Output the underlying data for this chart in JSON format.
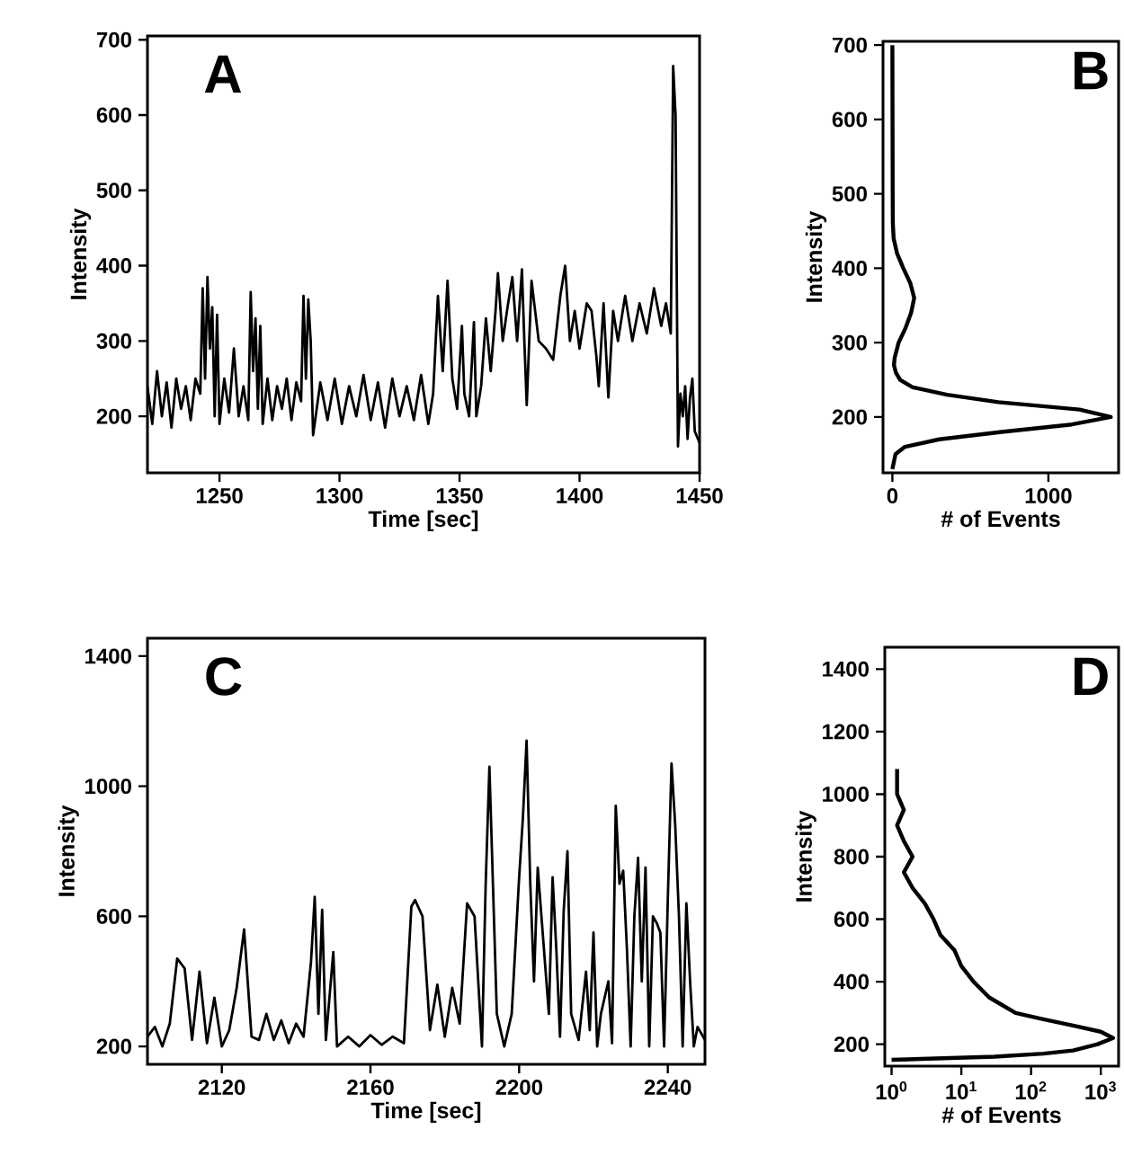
{
  "chart_data": [
    {
      "type": "line",
      "xlabel": "Time [sec]",
      "ylabel": "Intensity",
      "annotations": [
        "A"
      ],
      "xlim": [
        1220,
        1450
      ],
      "ylim": [
        125,
        705
      ],
      "xticks": [
        1250,
        1300,
        1350,
        1400,
        1450
      ],
      "yticks": [
        200,
        300,
        400,
        500,
        600,
        700
      ],
      "series": [
        {
          "color": "#000000",
          "x": [
            1220,
            1222,
            1224,
            1226,
            1228,
            1230,
            1232,
            1234,
            1236,
            1238,
            1240,
            1242,
            1243,
            1244,
            1245,
            1246,
            1247,
            1248,
            1249,
            1250,
            1252,
            1254,
            1256,
            1258,
            1260,
            1262,
            1263,
            1264,
            1265,
            1266,
            1267,
            1268,
            1270,
            1272,
            1274,
            1276,
            1278,
            1280,
            1282,
            1284,
            1285,
            1286,
            1287,
            1288,
            1289,
            1292,
            1295,
            1298,
            1301,
            1304,
            1307,
            1310,
            1313,
            1316,
            1319,
            1322,
            1325,
            1328,
            1331,
            1334,
            1337,
            1339,
            1341,
            1343,
            1345,
            1347,
            1349,
            1351,
            1352,
            1354,
            1356,
            1357,
            1359,
            1361,
            1363,
            1365,
            1366,
            1368,
            1370,
            1372,
            1374,
            1376,
            1377,
            1378,
            1380,
            1383,
            1386,
            1389,
            1392,
            1394,
            1396,
            1398,
            1400,
            1403,
            1405,
            1407,
            1408,
            1410,
            1412,
            1414,
            1416,
            1419,
            1422,
            1425,
            1428,
            1431,
            1434,
            1436,
            1438,
            1439,
            1440,
            1441,
            1442,
            1443,
            1444,
            1445,
            1446,
            1447,
            1448,
            1450
          ],
          "values": [
            240,
            190,
            260,
            200,
            245,
            185,
            250,
            210,
            240,
            195,
            250,
            230,
            370,
            250,
            385,
            290,
            345,
            200,
            335,
            190,
            250,
            205,
            290,
            200,
            240,
            195,
            365,
            260,
            330,
            210,
            320,
            190,
            250,
            195,
            240,
            210,
            250,
            195,
            245,
            220,
            360,
            250,
            355,
            300,
            175,
            245,
            195,
            250,
            190,
            240,
            200,
            255,
            195,
            245,
            185,
            250,
            200,
            240,
            195,
            255,
            190,
            230,
            360,
            260,
            380,
            250,
            210,
            320,
            230,
            200,
            325,
            200,
            240,
            330,
            260,
            340,
            390,
            300,
            345,
            385,
            300,
            395,
            300,
            215,
            380,
            300,
            290,
            275,
            360,
            400,
            300,
            340,
            290,
            350,
            340,
            280,
            240,
            350,
            225,
            340,
            300,
            360,
            300,
            350,
            310,
            370,
            320,
            350,
            310,
            665,
            600,
            160,
            230,
            200,
            240,
            170,
            225,
            250,
            180,
            165
          ]
        }
      ]
    },
    {
      "type": "line",
      "xlabel": "# of Events",
      "ylabel": "Intensity",
      "annotations": [
        "B"
      ],
      "xlim": [
        -60,
        1450
      ],
      "ylim": [
        125,
        705
      ],
      "xticks": [
        0,
        1000
      ],
      "yticks": [
        200,
        300,
        400,
        500,
        600,
        700
      ],
      "series": [
        {
          "color": "#000000",
          "x": [
            0,
            20,
            80,
            300,
            700,
            1150,
            1400,
            1200,
            680,
            350,
            130,
            50,
            22,
            10,
            15,
            40,
            85,
            120,
            140,
            115,
            70,
            30,
            8,
            3,
            2,
            1,
            0
          ],
          "values": [
            130,
            150,
            160,
            170,
            180,
            190,
            200,
            210,
            220,
            230,
            240,
            250,
            260,
            270,
            280,
            300,
            320,
            340,
            360,
            380,
            400,
            420,
            440,
            460,
            500,
            600,
            700
          ]
        }
      ]
    },
    {
      "type": "line",
      "xlabel": "Time [sec]",
      "ylabel": "Intensity",
      "annotations": [
        "C"
      ],
      "xlim": [
        2100,
        2250
      ],
      "ylim": [
        145,
        1455
      ],
      "xticks": [
        2120,
        2160,
        2200,
        2240
      ],
      "yticks": [
        200,
        600,
        1000,
        1400
      ],
      "series": [
        {
          "color": "#000000",
          "x": [
            2100,
            2102,
            2104,
            2106,
            2108,
            2110,
            2112,
            2114,
            2116,
            2118,
            2120,
            2122,
            2124,
            2126,
            2128,
            2130,
            2132,
            2134,
            2136,
            2138,
            2140,
            2142,
            2144,
            2145,
            2146,
            2147,
            2148,
            2150,
            2151,
            2154,
            2157,
            2160,
            2163,
            2166,
            2169,
            2171,
            2172,
            2174,
            2176,
            2178,
            2180,
            2182,
            2184,
            2186,
            2188,
            2190,
            2191,
            2192,
            2194,
            2196,
            2198,
            2200,
            2201,
            2202,
            2203,
            2204,
            2205,
            2206,
            2208,
            2209,
            2210,
            2211,
            2212,
            2213,
            2214,
            2216,
            2218,
            2219,
            2220,
            2221,
            2222,
            2224,
            2225,
            2226,
            2227,
            2228,
            2229,
            2230,
            2231,
            2232,
            2233,
            2234,
            2235,
            2236,
            2237,
            2238,
            2239,
            2240,
            2241,
            2242,
            2243,
            2244,
            2245,
            2246,
            2247,
            2248,
            2250
          ],
          "values": [
            230,
            260,
            200,
            270,
            470,
            440,
            220,
            430,
            210,
            350,
            200,
            250,
            380,
            560,
            230,
            220,
            300,
            220,
            280,
            210,
            270,
            230,
            460,
            660,
            300,
            620,
            220,
            490,
            200,
            230,
            200,
            235,
            205,
            230,
            210,
            630,
            650,
            600,
            250,
            390,
            230,
            380,
            270,
            640,
            600,
            200,
            700,
            1060,
            300,
            200,
            300,
            720,
            900,
            1140,
            700,
            400,
            750,
            600,
            300,
            720,
            500,
            230,
            620,
            800,
            300,
            220,
            430,
            250,
            550,
            200,
            300,
            400,
            210,
            940,
            700,
            740,
            500,
            200,
            600,
            780,
            400,
            750,
            200,
            600,
            580,
            550,
            200,
            650,
            1070,
            880,
            600,
            200,
            640,
            400,
            200,
            260,
            220
          ]
        }
      ]
    },
    {
      "type": "line",
      "xlabel": "# of Events",
      "ylabel": "Intensity",
      "annotations": [
        "D"
      ],
      "log": "x",
      "xlim": [
        0.8,
        1800
      ],
      "ylim": [
        130,
        1470
      ],
      "xticks": [
        {
          "value": 1,
          "label": "10$^{0}$"
        },
        {
          "value": 10,
          "label": "10$^{1}$"
        },
        {
          "value": 100,
          "label": "10$^{2}$"
        },
        {
          "value": 1000,
          "label": "10$^{3}$"
        }
      ],
      "yticks": [
        200,
        400,
        600,
        800,
        1000,
        1200,
        1400
      ],
      "series": [
        {
          "color": "#000000",
          "x": [
            1,
            30,
            150,
            400,
            900,
            1500,
            1000,
            400,
            150,
            60,
            25,
            15,
            10,
            8,
            5,
            4,
            3,
            2,
            1.5,
            2,
            1.5,
            1.2,
            1.5,
            1.2,
            1.2
          ],
          "values": [
            150,
            160,
            170,
            180,
            200,
            220,
            240,
            260,
            280,
            300,
            350,
            400,
            450,
            500,
            550,
            600,
            650,
            700,
            750,
            800,
            850,
            900,
            950,
            1000,
            1080
          ]
        }
      ]
    }
  ]
}
